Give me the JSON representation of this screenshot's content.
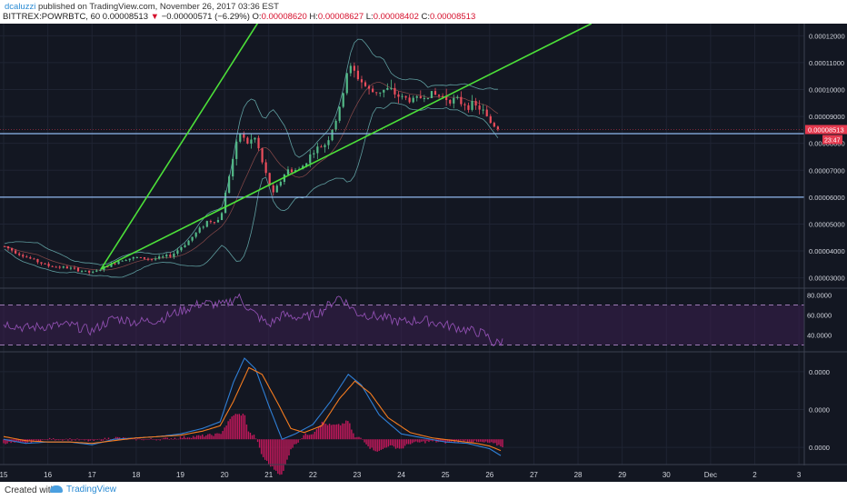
{
  "header": {
    "user": "dcaluzzi",
    "published_text": "published on TradingView.com, November 26, 2017 03:36 EST",
    "symbol": "BITTREX:POWRBTC, 60",
    "last_price": "0.00008513",
    "change_arrow": "▼",
    "change": "−0.00000571 (−6.29%)",
    "open_label": "O:",
    "open": "0.00008620",
    "high_label": "H:",
    "high": "0.00008627",
    "low_label": "L:",
    "low": "0.00008402",
    "close_label": "C:",
    "close": "0.00008513"
  },
  "footer": {
    "created_with": "Created with",
    "brand": "TradingView"
  },
  "colors": {
    "background": "#131722",
    "grid": "#1f2433",
    "candle_up": "#53b987",
    "candle_down": "#eb4d5c",
    "trendline": "#4ce039",
    "hline": "#90b8ef",
    "bollinger": "#5f9ea0",
    "rsi": "#8f4fb0",
    "rsi_band": "#3a1f4f",
    "macd": "#2f7fd6",
    "signal": "#f57c1f",
    "hist": "#c2185b",
    "price_marker": "#e53a4f"
  },
  "price_marker": {
    "value": "0.00008513",
    "countdown": "23:47"
  },
  "chart_data": [
    {
      "type": "candlestick",
      "title": "BITTREX:POWRBTC, 60",
      "y_ticks": [
        "0.00012000",
        "0.00011000",
        "0.00010000",
        "0.00009000",
        "0.00008000",
        "0.00007000",
        "0.00006000",
        "0.00005000",
        "0.00004000",
        "0.00003000"
      ],
      "ylim": [
        2.65e-05,
        0.0001245
      ],
      "x_ticks": [
        "15",
        "16",
        "17",
        "18",
        "19",
        "20",
        "21",
        "22",
        "23",
        "24",
        "25",
        "26",
        "27",
        "28",
        "29",
        "30",
        "Dec",
        "2",
        "3"
      ],
      "xlim_days": [
        15,
        33.1
      ],
      "horizontal_lines": [
        8.36e-05,
        6e-05
      ],
      "trendlines": [
        {
          "from": [
            17.2,
            3.32e-05
          ],
          "to": [
            20.8,
            0.000126
          ]
        },
        {
          "from": [
            17.2,
            3.32e-05
          ],
          "to": [
            28.3,
            0.0001245
          ]
        }
      ],
      "series_anchors": [
        [
          15.0,
          4.18e-05
        ],
        [
          15.5,
          3.78e-05
        ],
        [
          16.0,
          3.45e-05
        ],
        [
          16.5,
          3.36e-05
        ],
        [
          17.0,
          3.18e-05
        ],
        [
          17.3,
          3.4e-05
        ],
        [
          17.7,
          3.7e-05
        ],
        [
          18.0,
          3.75e-05
        ],
        [
          18.4,
          3.7e-05
        ],
        [
          18.8,
          3.84e-05
        ],
        [
          19.2,
          4.4e-05
        ],
        [
          19.6,
          5.1e-05
        ],
        [
          19.9,
          5.15e-05
        ],
        [
          20.15,
          7.2e-05
        ],
        [
          20.35,
          8.4e-05
        ],
        [
          20.5,
          8e-05
        ],
        [
          20.7,
          8.2e-05
        ],
        [
          20.9,
          7e-05
        ],
        [
          21.1,
          6.1e-05
        ],
        [
          21.4,
          7e-05
        ],
        [
          21.7,
          7e-05
        ],
        [
          22.0,
          7.7e-05
        ],
        [
          22.3,
          8e-05
        ],
        [
          22.6,
          9.2e-05
        ],
        [
          22.8,
          0.000109
        ],
        [
          23.0,
          0.000105
        ],
        [
          23.3,
          9.9e-05
        ],
        [
          23.7,
          0.0001
        ],
        [
          24.0,
          9.7e-05
        ],
        [
          24.3,
          9.6e-05
        ],
        [
          24.6,
          9.85e-05
        ],
        [
          24.9,
          9.75e-05
        ],
        [
          25.2,
          9.6e-05
        ],
        [
          25.5,
          9.45e-05
        ],
        [
          25.8,
          9.3e-05
        ],
        [
          26.0,
          8.8e-05
        ],
        [
          26.25,
          8.51e-05
        ]
      ]
    },
    {
      "type": "line",
      "title": "RSI",
      "y_ticks": [
        "80.0000",
        "60.0000",
        "40.0000"
      ],
      "ylim": [
        24,
        86
      ],
      "band": [
        30,
        70
      ],
      "series_anchors": [
        [
          15.0,
          52
        ],
        [
          15.5,
          47
        ],
        [
          16.0,
          49
        ],
        [
          16.5,
          50
        ],
        [
          17.0,
          44
        ],
        [
          17.5,
          57
        ],
        [
          18.0,
          53
        ],
        [
          18.5,
          55
        ],
        [
          19.0,
          64
        ],
        [
          19.5,
          72
        ],
        [
          20.0,
          70
        ],
        [
          20.3,
          79
        ],
        [
          20.6,
          64
        ],
        [
          21.0,
          50
        ],
        [
          21.3,
          60
        ],
        [
          21.8,
          57
        ],
        [
          22.2,
          64
        ],
        [
          22.6,
          79
        ],
        [
          23.0,
          62
        ],
        [
          23.5,
          58
        ],
        [
          24.0,
          53
        ],
        [
          24.5,
          55
        ],
        [
          25.0,
          50
        ],
        [
          25.5,
          45
        ],
        [
          25.9,
          41
        ],
        [
          26.1,
          31
        ],
        [
          26.3,
          34
        ]
      ]
    },
    {
      "type": "line",
      "title": "MACD",
      "y_ticks": [
        "0.0000",
        "0.0000",
        "0.0000"
      ],
      "ylim": [
        -1.8e-06,
        6.4e-06
      ],
      "series": [
        {
          "name": "",
          "values_anchors": [
            [
              15.0,
              0.0
            ],
            [
              15.5,
              -3e-07
            ],
            [
              16.0,
              -2e-07
            ],
            [
              16.5,
              -2e-07
            ],
            [
              17.0,
              -4e-07
            ],
            [
              17.5,
              0.0
            ],
            [
              18.0,
              1e-07
            ],
            [
              18.5,
              2e-07
            ],
            [
              19.0,
              4e-07
            ],
            [
              19.5,
              8e-07
            ],
            [
              19.9,
              1.3e-06
            ],
            [
              20.2,
              4.2e-06
            ],
            [
              20.45,
              6e-06
            ],
            [
              20.7,
              5.2e-06
            ],
            [
              21.0,
              2.5e-06
            ],
            [
              21.3,
              0.0
            ],
            [
              21.6,
              4e-07
            ],
            [
              22.0,
              1.1e-06
            ],
            [
              22.4,
              2.8e-06
            ],
            [
              22.8,
              4.8e-06
            ],
            [
              23.1,
              4e-06
            ],
            [
              23.5,
              1.8e-06
            ],
            [
              24.0,
              4e-07
            ],
            [
              24.5,
              1e-07
            ],
            [
              25.0,
              -2e-07
            ],
            [
              25.5,
              -3e-07
            ],
            [
              26.0,
              -7e-07
            ],
            [
              26.3,
              -1.3e-06
            ]
          ]
        },
        {
          "name": "",
          "values_anchors": [
            [
              15.0,
              2e-07
            ],
            [
              15.5,
              -1e-07
            ],
            [
              16.0,
              -2e-07
            ],
            [
              16.5,
              -2e-07
            ],
            [
              17.0,
              -3e-07
            ],
            [
              17.5,
              -1e-07
            ],
            [
              18.0,
              1e-07
            ],
            [
              18.5,
              2e-07
            ],
            [
              19.0,
              3e-07
            ],
            [
              19.5,
              6e-07
            ],
            [
              19.9,
              1e-06
            ],
            [
              20.2,
              2.8e-06
            ],
            [
              20.55,
              5.3e-06
            ],
            [
              20.85,
              4.8e-06
            ],
            [
              21.2,
              2.7e-06
            ],
            [
              21.5,
              8e-07
            ],
            [
              21.8,
              5e-07
            ],
            [
              22.2,
              1e-06
            ],
            [
              22.6,
              3e-06
            ],
            [
              22.95,
              4.3e-06
            ],
            [
              23.3,
              3.4e-06
            ],
            [
              23.7,
              1.6e-06
            ],
            [
              24.2,
              5e-07
            ],
            [
              24.7,
              1e-07
            ],
            [
              25.2,
              -1e-07
            ],
            [
              25.7,
              -3e-07
            ],
            [
              26.0,
              -5e-07
            ],
            [
              26.3,
              -9e-07
            ]
          ]
        }
      ]
    }
  ]
}
